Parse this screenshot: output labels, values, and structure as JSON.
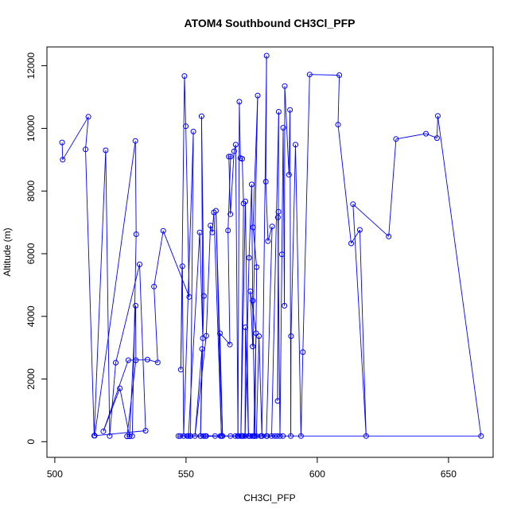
{
  "chart_data": {
    "type": "scatter",
    "title": "ATOM4 Southbound CH3Cl_PFP",
    "xlabel": "CH3Cl_PFP",
    "ylabel": "Altitude (m)",
    "xlim": [
      497,
      667
    ],
    "ylim": [
      -500,
      12600
    ],
    "xticks": [
      "500",
      "550",
      "600",
      "650"
    ],
    "yticks": [
      "0",
      "2000",
      "4000",
      "6000",
      "8000",
      "10000",
      "12000"
    ],
    "grid": false,
    "legend": "none",
    "series_color": "#0000ff",
    "lines_connect_points": true,
    "x": [
      502.8,
      503.0,
      512.8,
      511.7,
      515.0,
      519.4,
      520.9,
      523.2,
      532.3,
      534.6,
      515.2,
      530.7,
      531.0,
      529.5,
      527.5,
      530.9,
      530.8,
      528.5,
      524.8,
      518.5,
      528.0,
      535.3,
      539.2,
      537.8,
      541.3,
      551.2,
      549.9,
      549.4,
      548.0,
      548.6,
      549.1,
      552.8,
      551.7,
      550.9,
      555.2,
      556.4,
      555.9,
      556.8,
      555.5,
      556.1,
      553.4,
      557.7,
      559.3,
      560.0,
      560.6,
      563.5,
      561.4,
      563.9,
      562.9,
      566.7,
      566.0,
      567.0,
      566.3,
      566.9,
      568.3,
      568.9,
      569.8,
      570.3,
      570.7,
      571.4,
      571.9,
      570.9,
      572.6,
      573.8,
      572.6,
      572.5,
      574.0,
      575.0,
      575.4,
      576.2,
      576.9,
      575.5,
      577.3,
      575.4,
      574.5,
      576.7,
      575.8,
      575.2,
      576.8,
      577.8,
      578.9,
      580.7,
      580.4,
      581.2,
      582.8,
      580.6,
      582.6,
      585.3,
      584.9,
      585.2,
      585.0,
      585.8,
      586.5,
      587.0,
      587.5,
      587.6,
      589.2,
      589.6,
      589.9,
      590.0,
      591.7,
      593.8,
      594.5,
      597.1,
      608.4,
      607.9,
      612.9,
      616.2,
      618.6,
      613.6,
      627.2,
      630.0,
      641.4,
      645.6,
      645.9,
      662.4,
      586.9,
      583.8,
      571.8,
      578.5,
      571.5,
      576.0,
      570.0,
      584.7,
      578.9,
      580.9,
      574.3,
      569.7,
      556.7,
      557.4,
      561.1,
      547.1,
      547.8,
      551.5,
      550.4,
      555.5,
      563.1,
      557.7,
      571.2,
      575.9,
      568.8,
      566.9
    ],
    "y": [
      9550,
      9000,
      10370,
      9330,
      190,
      9300,
      180,
      2520,
      5660,
      350,
      190,
      9600,
      6620,
      180,
      170,
      2600,
      4340,
      170,
      1700,
      330,
      2600,
      2620,
      2530,
      4950,
      6730,
      4620,
      10070,
      11670,
      2300,
      5600,
      180,
      9900,
      180,
      180,
      6680,
      3300,
      10390,
      4650,
      180,
      2960,
      180,
      3380,
      6900,
      6680,
      7320,
      180,
      7370,
      180,
      3460,
      3100,
      6740,
      9100,
      9100,
      7260,
      9270,
      9480,
      180,
      10850,
      9050,
      9030,
      7600,
      180,
      7670,
      180,
      3650,
      180,
      5870,
      8210,
      4500,
      180,
      5570,
      6840,
      11050,
      3040,
      4800,
      3460,
      180,
      180,
      180,
      3370,
      180,
      12320,
      8300,
      6400,
      6870,
      180,
      180,
      10530,
      1300,
      7340,
      7160,
      180,
      5980,
      10020,
      4340,
      11350,
      8520,
      10590,
      180,
      3370,
      9480,
      180,
      2860,
      11720,
      11700,
      10120,
      6330,
      6760,
      180,
      7580,
      6550,
      9660,
      9830,
      9690,
      10400,
      180,
      180,
      180,
      180,
      180,
      180,
      180,
      180,
      180,
      180,
      180,
      180,
      180,
      180,
      180,
      180,
      180,
      180,
      180,
      180,
      180,
      180,
      180,
      180,
      180,
      180,
      180
    ]
  }
}
